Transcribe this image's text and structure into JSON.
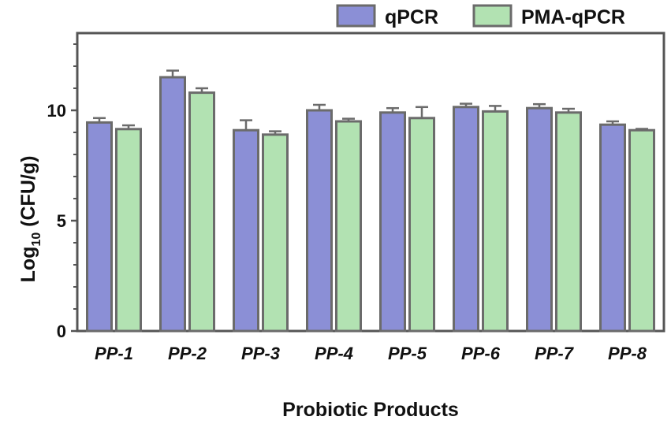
{
  "chart_data": {
    "type": "bar",
    "title": "",
    "xlabel": "Probiotic Products",
    "ylabel_main": "Log",
    "ylabel_sub": "10",
    "ylabel_rest": " (CFU/g)",
    "ylim": [
      0,
      13.5
    ],
    "yticks": [
      0,
      5,
      10
    ],
    "grid": false,
    "legend_position": "top-right",
    "categories": [
      "PP-1",
      "PP-2",
      "PP-3",
      "PP-4",
      "PP-5",
      "PP-6",
      "PP-7",
      "PP-8"
    ],
    "series": [
      {
        "name": "qPCR",
        "color": "#8b8fd6",
        "values": [
          9.45,
          11.5,
          9.1,
          10.0,
          9.9,
          10.15,
          10.1,
          9.35
        ],
        "errors": [
          0.2,
          0.3,
          0.45,
          0.25,
          0.2,
          0.15,
          0.18,
          0.15
        ]
      },
      {
        "name": "PMA-qPCR",
        "color": "#b2e2b2",
        "values": [
          9.15,
          10.8,
          8.9,
          9.5,
          9.65,
          9.95,
          9.9,
          9.1
        ],
        "errors": [
          0.17,
          0.2,
          0.15,
          0.12,
          0.5,
          0.25,
          0.17,
          0.06
        ]
      }
    ],
    "border_color": "#6b6b6b",
    "axis_color": "#555555"
  }
}
